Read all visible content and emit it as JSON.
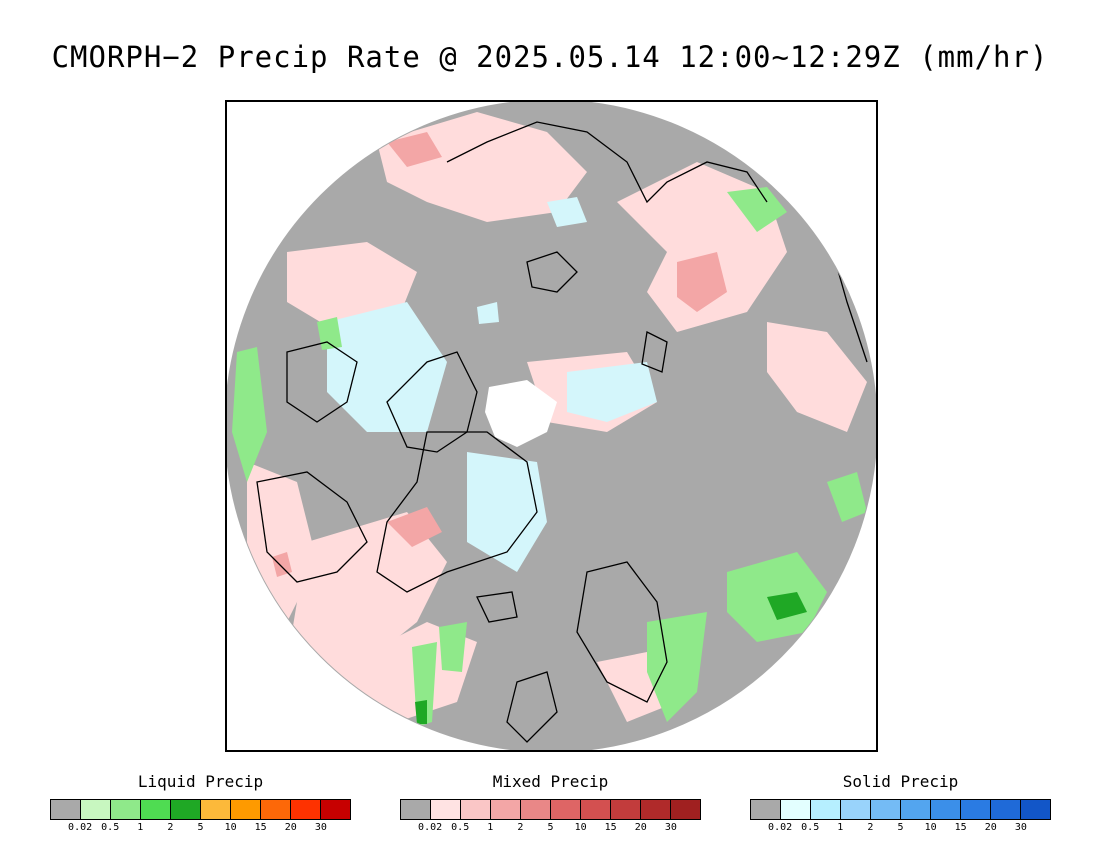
{
  "title": "CMORPH−2 Precip Rate @ 2025.05.14 12:00~12:29Z (mm/hr)",
  "map": {
    "projection": "polar stereographic, north pole",
    "background_color": "#a9a9a9",
    "outside_color": "#ffffff",
    "coastline_color": "#000000",
    "pole_missing_color": "#ffffff"
  },
  "legends": [
    {
      "id": "liquid",
      "title": "Liquid Precip",
      "colors": [
        "#a9a9a9",
        "#c8f7c0",
        "#8fe98a",
        "#4fdc52",
        "#1fa825",
        "#fcb93a",
        "#fe9a00",
        "#fd6808",
        "#fe3200",
        "#c70000"
      ],
      "ticks": [
        "0.02",
        "0.5",
        "1",
        "2",
        "5",
        "10",
        "15",
        "20",
        "30"
      ]
    },
    {
      "id": "mixed",
      "title": "Mixed Precip",
      "colors": [
        "#a9a9a9",
        "#ffe3e3",
        "#fac6c6",
        "#f3a6a6",
        "#e98787",
        "#de6565",
        "#d35050",
        "#c23c3c",
        "#b02a2a",
        "#a02020"
      ],
      "ticks": [
        "0.02",
        "0.5",
        "1",
        "2",
        "5",
        "10",
        "15",
        "20",
        "30"
      ]
    },
    {
      "id": "solid",
      "title": "Solid Precip",
      "colors": [
        "#a9a9a9",
        "#e3ffff",
        "#b6efff",
        "#99d3fb",
        "#74bbf5",
        "#53a5ef",
        "#3b8fe9",
        "#2a7be3",
        "#1f6ad8",
        "#1256c8"
      ],
      "ticks": [
        "0.02",
        "0.5",
        "1",
        "2",
        "5",
        "10",
        "15",
        "20",
        "30"
      ]
    }
  ]
}
